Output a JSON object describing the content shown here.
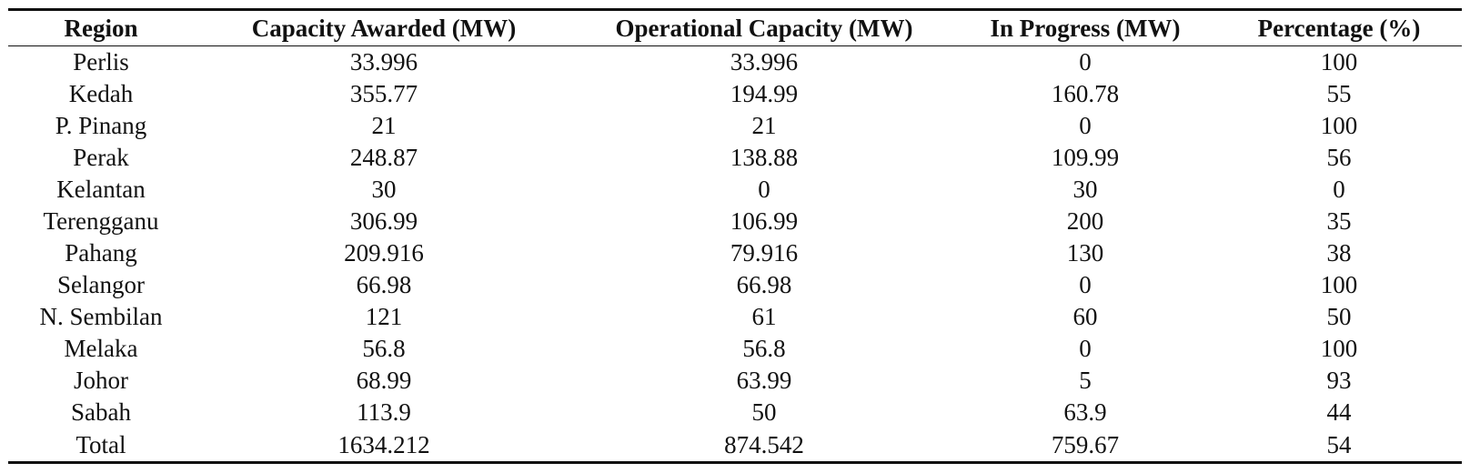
{
  "table": {
    "headers": [
      "Region",
      "Capacity Awarded (MW)",
      "Operational Capacity (MW)",
      "In Progress (MW)",
      "Percentage (%)"
    ],
    "rows": [
      [
        "Perlis",
        "33.996",
        "33.996",
        "0",
        "100"
      ],
      [
        "Kedah",
        "355.77",
        "194.99",
        "160.78",
        "55"
      ],
      [
        "P. Pinang",
        "21",
        "21",
        "0",
        "100"
      ],
      [
        "Perak",
        "248.87",
        "138.88",
        "109.99",
        "56"
      ],
      [
        "Kelantan",
        "30",
        "0",
        "30",
        "0"
      ],
      [
        "Terengganu",
        "306.99",
        "106.99",
        "200",
        "35"
      ],
      [
        "Pahang",
        "209.916",
        "79.916",
        "130",
        "38"
      ],
      [
        "Selangor",
        "66.98",
        "66.98",
        "0",
        "100"
      ],
      [
        "N. Sembilan",
        "121",
        "61",
        "60",
        "50"
      ],
      [
        "Melaka",
        "56.8",
        "56.8",
        "0",
        "100"
      ],
      [
        "Johor",
        "68.99",
        "63.99",
        "5",
        "93"
      ],
      [
        "Sabah",
        "113.9",
        "50",
        "63.9",
        "44"
      ],
      [
        "Total",
        "1634.212",
        "874.542",
        "759.67",
        "54"
      ]
    ]
  }
}
